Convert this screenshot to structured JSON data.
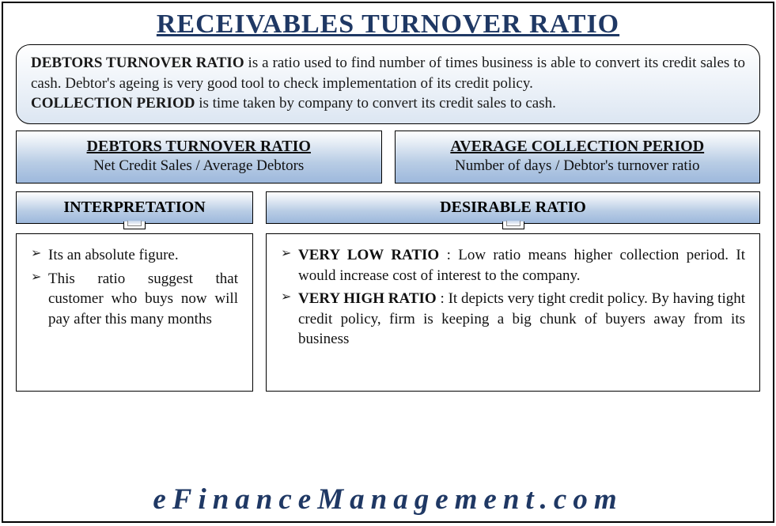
{
  "colors": {
    "title_text": "#1f3864",
    "border": "#000000",
    "gradient_light_start": "#ffffff",
    "gradient_light_end": "#dce6f2",
    "gradient_blue_mid": "#b9cde5",
    "gradient_blue_end": "#9db8dc",
    "body_text": "#111111",
    "footer_text": "#1f3864",
    "background": "#ffffff"
  },
  "typography": {
    "title_fontsize": 34,
    "body_fontsize": 19,
    "formula_title_fontsize": 20,
    "section_header_fontsize": 20,
    "footer_fontsize": 37,
    "footer_letter_spacing": 8,
    "font_family": "Georgia / Times New Roman (serif)"
  },
  "title": "RECEIVABLES TURNOVER RATIO",
  "definition": {
    "term1": "DEBTORS TURNOVER RATIO",
    "text1": " is a ratio used to find number of times business is able to convert its credit sales to cash. Debtor's ageing is very good tool to check implementation of its credit policy.",
    "term2": "COLLECTION PERIOD",
    "text2": " is time taken by company to convert its credit sales to cash."
  },
  "formulas": [
    {
      "title": "DEBTORS TURNOVER RATIO",
      "body": "Net Credit Sales / Average Debtors"
    },
    {
      "title": "AVERAGE COLLECTION PERIOD",
      "body": "Number of days / Debtor's turnover ratio"
    }
  ],
  "sections": {
    "interpretation": {
      "header": "INTERPRETATION",
      "bullets": [
        {
          "bold": "",
          "text": "Its an absolute figure."
        },
        {
          "bold": "",
          "text": "This ratio suggest that customer who buys now will pay after this many months"
        }
      ]
    },
    "desirable": {
      "header": "DESIRABLE RATIO",
      "bullets": [
        {
          "bold": "VERY LOW RATIO",
          "text": " : Low ratio means higher collection period. It would increase cost of interest to the company."
        },
        {
          "bold": "VERY HIGH RATIO",
          "text": " : It depicts very tight credit policy. By having tight credit policy, firm is keeping a big chunk of buyers away from its business"
        }
      ]
    }
  },
  "footer": "eFinanceManagement.com"
}
